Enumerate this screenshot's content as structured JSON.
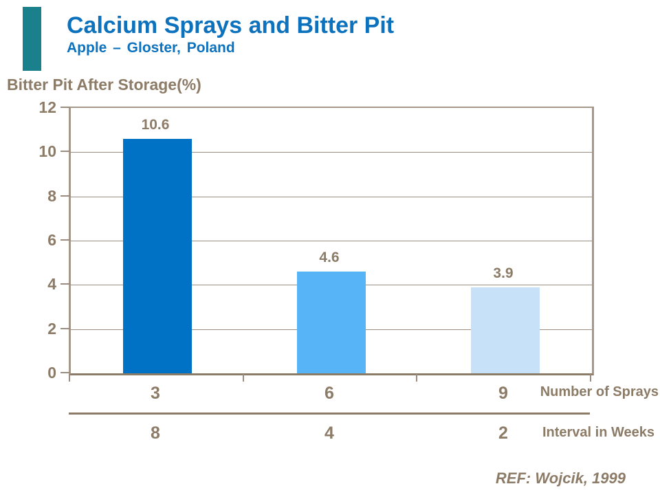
{
  "accent": {
    "teal_bar_color": "#1A808C"
  },
  "header": {
    "title": "Calcium Sprays and Bitter Pit",
    "subtitle": "Apple – Gloster, Poland",
    "title_color": "#0D72BE"
  },
  "chart_data": {
    "type": "bar",
    "title": "Bitter Pit After Storage(%)",
    "ylabel": "Bitter Pit After Storage(%)",
    "ylim": [
      0,
      12
    ],
    "yticks": [
      0,
      2,
      4,
      6,
      8,
      10,
      12
    ],
    "grid": true,
    "series": [
      {
        "name": "Bitter Pit After Storage (%)",
        "values": [
          10.6,
          4.6,
          3.9
        ]
      }
    ],
    "value_labels": [
      "10.6",
      "4.6",
      "3.9"
    ],
    "bar_colors": [
      "#0072C6",
      "#57B4F6",
      "#C7E2F8"
    ],
    "x_axis_rows": [
      {
        "label": "Number of Sprays",
        "values": [
          "3",
          "6",
          "9"
        ]
      },
      {
        "label": "Interval in Weeks",
        "values": [
          "8",
          "4",
          "2"
        ]
      }
    ],
    "text_color": "#8C7B66"
  },
  "footer": {
    "ref": "REF: Wojcik, 1999"
  }
}
